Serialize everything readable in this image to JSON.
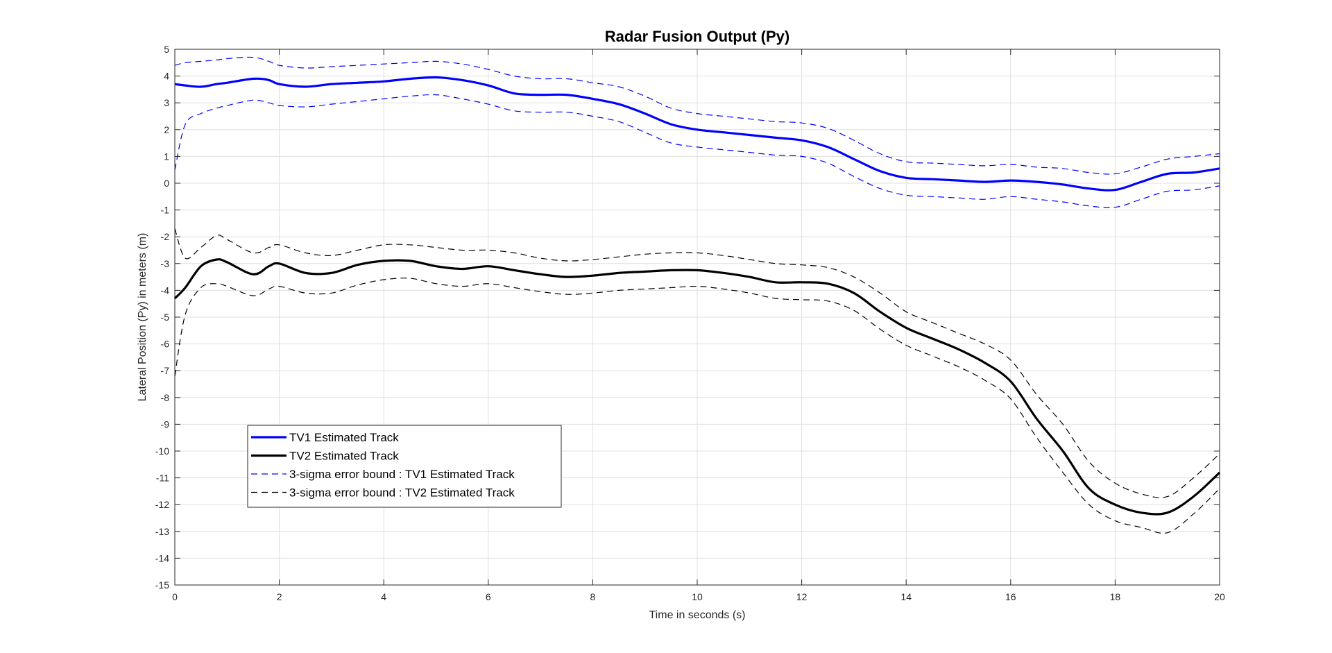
{
  "chart_data": {
    "type": "line",
    "title": "Radar Fusion Output (Py)",
    "xlabel": "Time in seconds (s)",
    "ylabel": "Lateral Position (Py) in meters (m)",
    "xlim": [
      0,
      20
    ],
    "ylim": [
      -15,
      5
    ],
    "xticks": [
      "0",
      "2",
      "4",
      "6",
      "8",
      "10",
      "12",
      "14",
      "16",
      "18",
      "20"
    ],
    "yticks": [
      "5",
      "4",
      "3",
      "2",
      "1",
      "0",
      "-1",
      "-2",
      "-3",
      "-4",
      "-5",
      "-6",
      "-7",
      "-8",
      "-9",
      "-10",
      "-11",
      "-12",
      "-13",
      "-14",
      "-15"
    ],
    "grid": true,
    "legend_position": "lower-left",
    "x": [
      0,
      0.2,
      0.5,
      0.8,
      1.0,
      1.5,
      1.8,
      2.0,
      2.5,
      3.0,
      3.5,
      4.0,
      4.5,
      5.0,
      5.5,
      6.0,
      6.5,
      7.0,
      7.5,
      8.0,
      8.5,
      9.0,
      9.5,
      10.0,
      10.5,
      11.0,
      11.5,
      12.0,
      12.5,
      13.0,
      13.5,
      14.0,
      14.5,
      15.0,
      15.5,
      16.0,
      16.5,
      17.0,
      17.5,
      18.0,
      18.5,
      19.0,
      19.5,
      20.0
    ],
    "series": [
      {
        "name": "TV1 Estimated Track",
        "color": "#0000ff",
        "style": "solid",
        "values": [
          3.7,
          3.65,
          3.6,
          3.7,
          3.75,
          3.9,
          3.85,
          3.7,
          3.6,
          3.7,
          3.75,
          3.8,
          3.9,
          3.95,
          3.85,
          3.65,
          3.35,
          3.3,
          3.3,
          3.15,
          2.95,
          2.6,
          2.2,
          2.0,
          1.9,
          1.8,
          1.7,
          1.6,
          1.35,
          0.9,
          0.45,
          0.2,
          0.15,
          0.1,
          0.05,
          0.1,
          0.05,
          -0.05,
          -0.2,
          -0.25,
          0.05,
          0.35,
          0.4,
          0.55
        ]
      },
      {
        "name": "TV2 Estimated Track",
        "color": "#000000",
        "style": "solid",
        "values": [
          -4.3,
          -3.9,
          -3.1,
          -2.85,
          -2.95,
          -3.4,
          -3.1,
          -3.0,
          -3.35,
          -3.35,
          -3.05,
          -2.9,
          -2.9,
          -3.1,
          -3.2,
          -3.1,
          -3.25,
          -3.4,
          -3.5,
          -3.45,
          -3.35,
          -3.3,
          -3.25,
          -3.25,
          -3.35,
          -3.5,
          -3.7,
          -3.7,
          -3.75,
          -4.1,
          -4.8,
          -5.4,
          -5.8,
          -6.2,
          -6.7,
          -7.4,
          -8.8,
          -10.0,
          -11.4,
          -12.0,
          -12.3,
          -12.3,
          -11.7,
          -10.8
        ]
      },
      {
        "name": "3-sigma error bound : TV1 Estimated Track",
        "color": "#0000ff",
        "style": "dashed",
        "values": [
          4.4,
          4.5,
          4.55,
          4.6,
          4.65,
          4.7,
          4.55,
          4.4,
          4.3,
          4.35,
          4.4,
          4.45,
          4.5,
          4.55,
          4.45,
          4.25,
          4.0,
          3.9,
          3.9,
          3.75,
          3.6,
          3.25,
          2.8,
          2.6,
          2.5,
          2.4,
          2.3,
          2.25,
          2.05,
          1.6,
          1.1,
          0.8,
          0.75,
          0.7,
          0.65,
          0.7,
          0.6,
          0.55,
          0.4,
          0.35,
          0.6,
          0.9,
          1.0,
          1.1
        ]
      },
      {
        "name": "",
        "color": "#0000ff",
        "style": "dashed",
        "values": [
          0.5,
          2.2,
          2.6,
          2.8,
          2.9,
          3.1,
          3.0,
          2.9,
          2.85,
          2.95,
          3.05,
          3.15,
          3.25,
          3.3,
          3.15,
          2.95,
          2.7,
          2.65,
          2.65,
          2.5,
          2.3,
          1.9,
          1.5,
          1.35,
          1.25,
          1.15,
          1.05,
          1.0,
          0.75,
          0.25,
          -0.2,
          -0.45,
          -0.5,
          -0.55,
          -0.6,
          -0.5,
          -0.6,
          -0.7,
          -0.85,
          -0.9,
          -0.6,
          -0.3,
          -0.25,
          -0.1
        ]
      },
      {
        "name": "3-sigma error bound : TV2 Estimated Track",
        "color": "#000000",
        "style": "dashed",
        "values": [
          -1.7,
          -2.8,
          -2.4,
          -1.95,
          -2.1,
          -2.6,
          -2.4,
          -2.3,
          -2.6,
          -2.7,
          -2.5,
          -2.3,
          -2.3,
          -2.4,
          -2.5,
          -2.5,
          -2.6,
          -2.8,
          -2.9,
          -2.85,
          -2.75,
          -2.65,
          -2.6,
          -2.6,
          -2.7,
          -2.85,
          -3.0,
          -3.05,
          -3.15,
          -3.5,
          -4.1,
          -4.8,
          -5.2,
          -5.6,
          -6.0,
          -6.6,
          -7.9,
          -9.0,
          -10.4,
          -11.2,
          -11.6,
          -11.7,
          -11.0,
          -10.1
        ]
      },
      {
        "name": "",
        "color": "#000000",
        "style": "dashed",
        "values": [
          -7.2,
          -4.9,
          -3.9,
          -3.75,
          -3.85,
          -4.2,
          -3.95,
          -3.85,
          -4.1,
          -4.1,
          -3.8,
          -3.6,
          -3.55,
          -3.75,
          -3.85,
          -3.75,
          -3.9,
          -4.05,
          -4.15,
          -4.1,
          -4.0,
          -3.95,
          -3.9,
          -3.85,
          -3.95,
          -4.1,
          -4.3,
          -4.35,
          -4.4,
          -4.75,
          -5.45,
          -6.05,
          -6.45,
          -6.85,
          -7.35,
          -8.05,
          -9.5,
          -10.8,
          -12.0,
          -12.6,
          -12.85,
          -13.05,
          -12.35,
          -11.4
        ]
      }
    ]
  }
}
